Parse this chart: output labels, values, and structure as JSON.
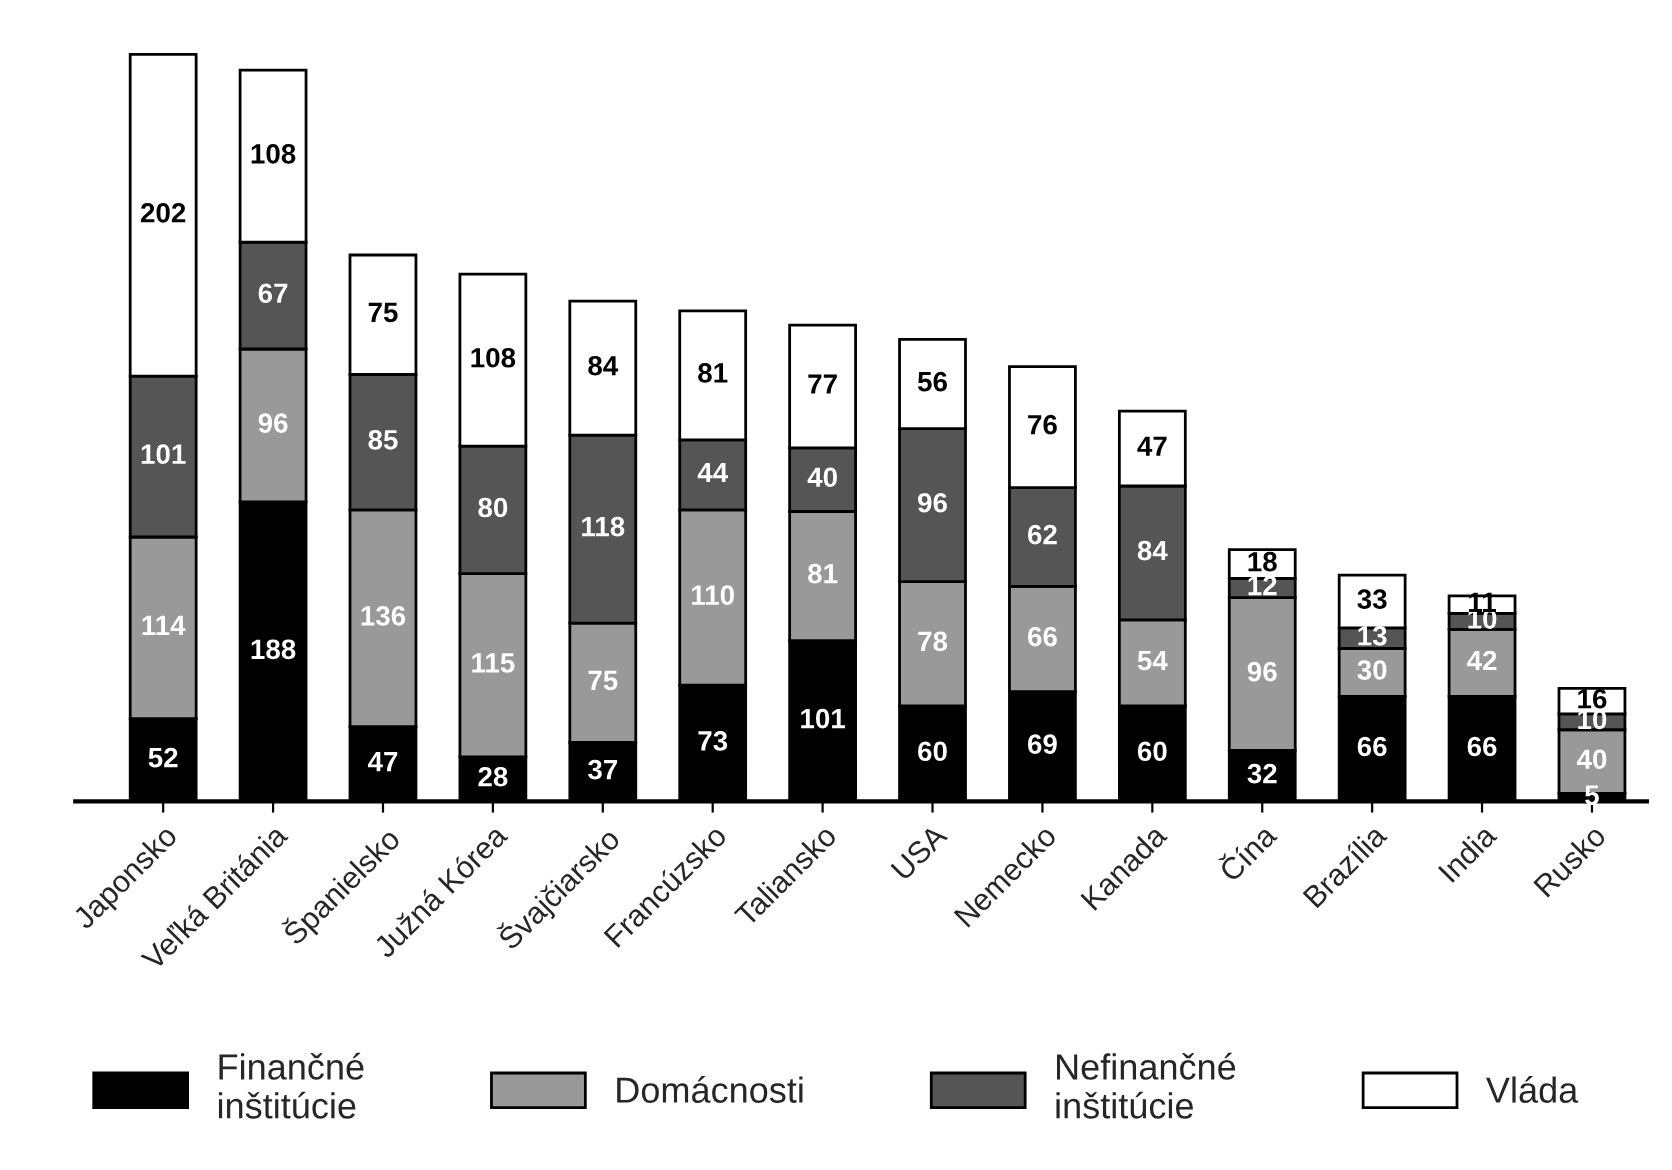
{
  "chart_data": {
    "type": "bar",
    "stacked": true,
    "data_labels": true,
    "legend": "bottom",
    "categories": [
      "Japonsko",
      "Veľká Británia",
      "Španielsko",
      "Južná Kórea",
      "Švajčiarsko",
      "Francúzsko",
      "Taliansko",
      "USA",
      "Nemecko",
      "Kanada",
      "Čína",
      "Brazília",
      "India",
      "Rusko"
    ],
    "series": [
      {
        "name": "Finančné\ninštitúcie",
        "color": "#000000",
        "values": [
          52,
          188,
          47,
          28,
          37,
          73,
          101,
          60,
          69,
          60,
          32,
          66,
          66,
          5
        ]
      },
      {
        "name": "Domácnosti",
        "color": "#999999",
        "values": [
          114,
          96,
          136,
          115,
          75,
          110,
          81,
          78,
          66,
          54,
          96,
          30,
          42,
          40
        ]
      },
      {
        "name": "Nefinančné\ninštitúcie",
        "color": "#555555",
        "values": [
          101,
          67,
          85,
          80,
          118,
          44,
          40,
          96,
          62,
          84,
          12,
          13,
          10,
          10
        ]
      },
      {
        "name": "Vláda",
        "color": "#ffffff",
        "values": [
          202,
          108,
          75,
          108,
          84,
          81,
          77,
          56,
          76,
          47,
          18,
          33,
          11,
          16
        ]
      }
    ]
  }
}
